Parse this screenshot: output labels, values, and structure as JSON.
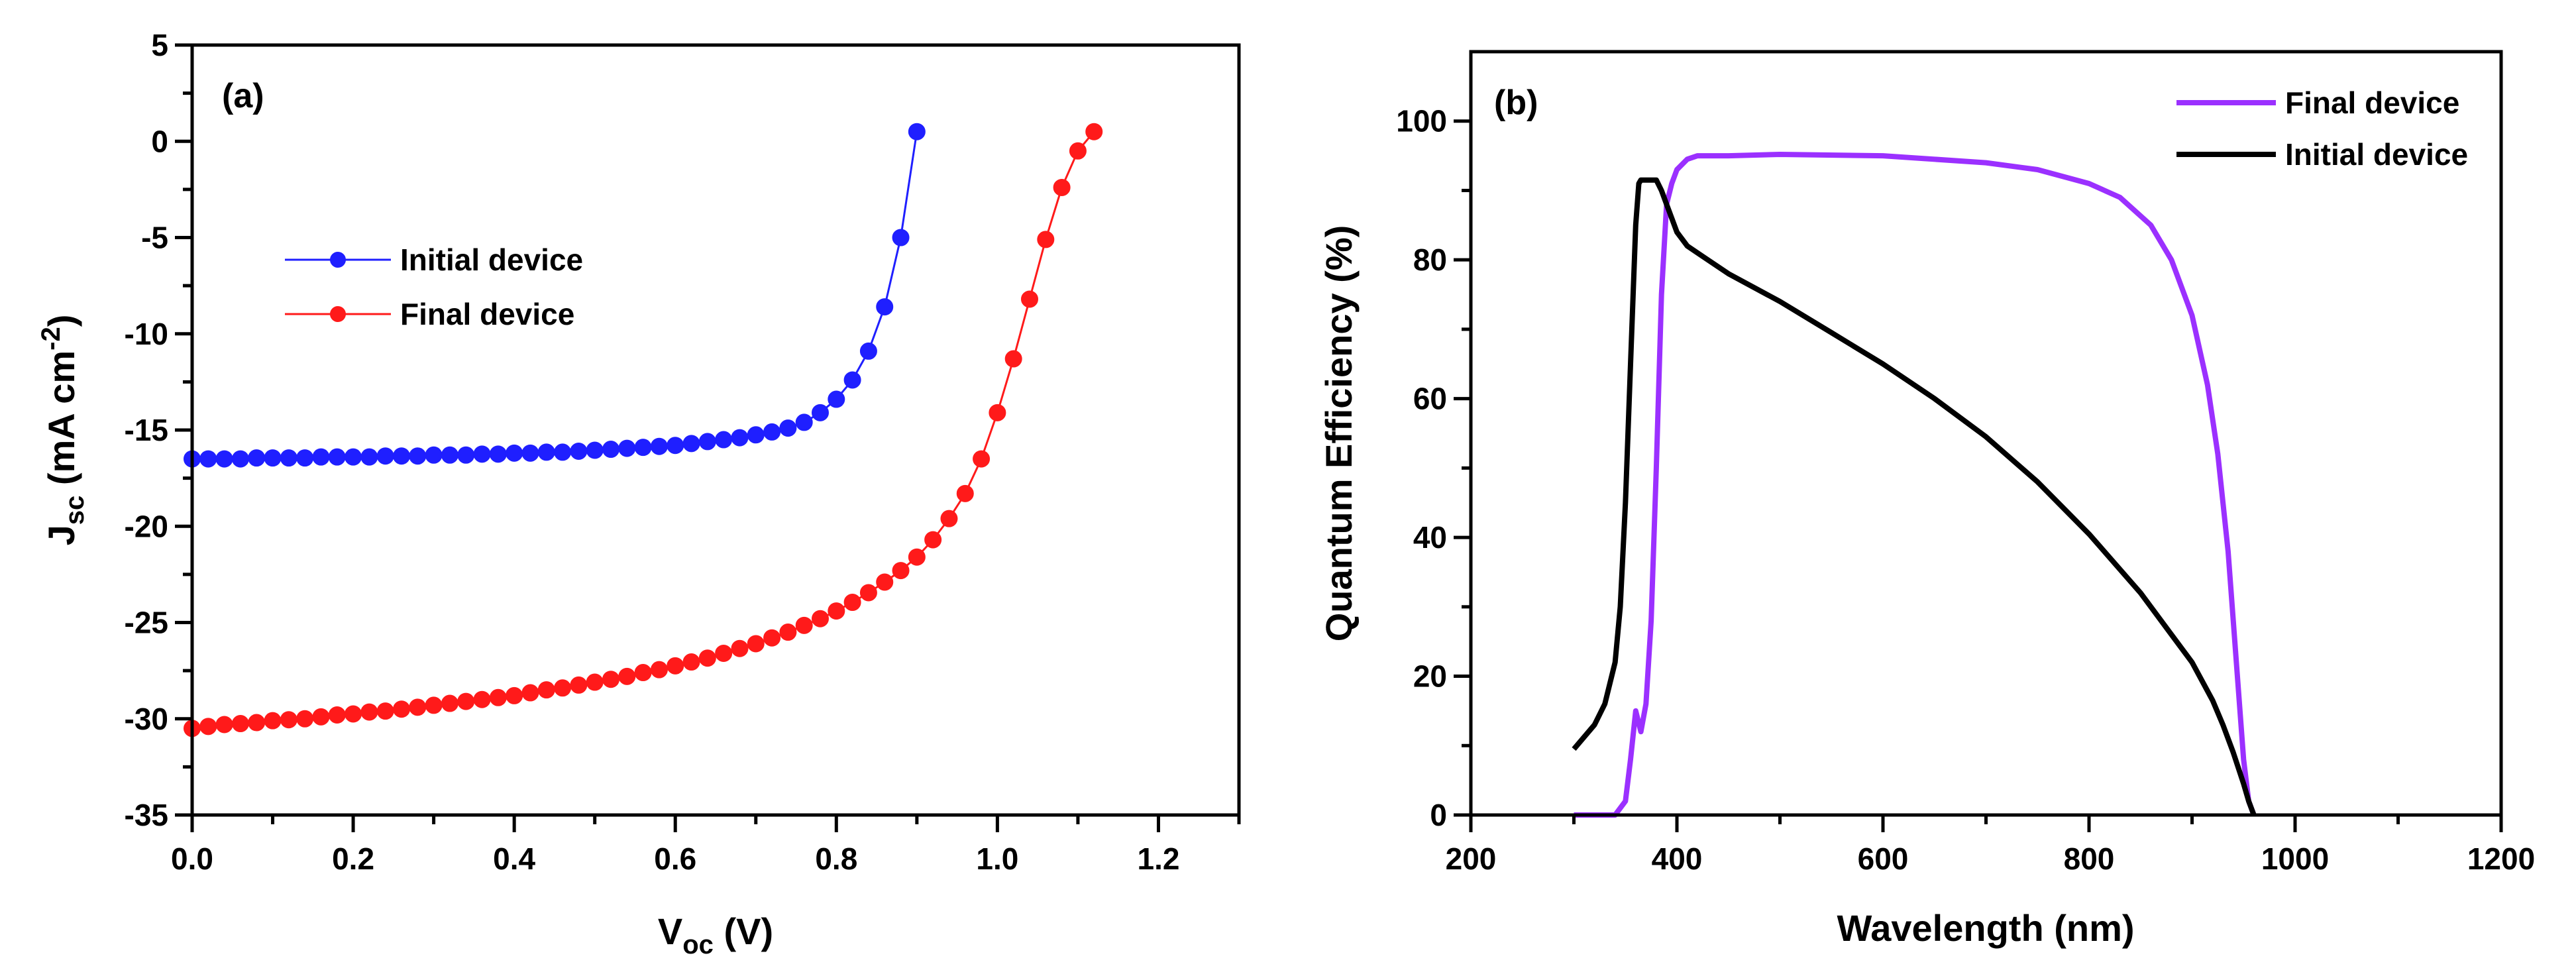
{
  "chart_data": [
    {
      "panel": "(a)",
      "type": "line",
      "markers": true,
      "xlabel": "V",
      "xlabel_sub": "oc",
      "xlabel_unit": " (V)",
      "ylabel": "J",
      "ylabel_sub": "sc",
      "ylabel_unit": " (mA cm",
      "ylabel_sup": "-2",
      "ylabel_close": ")",
      "xlim": [
        0.0,
        1.3
      ],
      "ylim": [
        -35,
        5
      ],
      "xticks": [
        0.0,
        0.2,
        0.4,
        0.6,
        0.8,
        1.0,
        1.2
      ],
      "xtick_labels": [
        "0.0",
        "0.2",
        "0.4",
        "0.6",
        "0.8",
        "1.0",
        "1.2"
      ],
      "yticks": [
        5,
        0,
        -5,
        -10,
        -15,
        -20,
        -25,
        -30,
        -35
      ],
      "ytick_labels": [
        "5",
        "0",
        "-5",
        "-10",
        "-15",
        "-20",
        "-25",
        "-30",
        "-35"
      ],
      "legend_position": "upper-left",
      "series": [
        {
          "name": "Initial device",
          "color": "#1f1fff",
          "x": [
            0.0,
            0.02,
            0.04,
            0.06,
            0.08,
            0.1,
            0.12,
            0.14,
            0.16,
            0.18,
            0.2,
            0.22,
            0.24,
            0.26,
            0.28,
            0.3,
            0.32,
            0.34,
            0.36,
            0.38,
            0.4,
            0.42,
            0.44,
            0.46,
            0.48,
            0.5,
            0.52,
            0.54,
            0.56,
            0.58,
            0.6,
            0.62,
            0.64,
            0.66,
            0.68,
            0.7,
            0.72,
            0.74,
            0.76,
            0.78,
            0.8,
            0.82,
            0.84,
            0.86,
            0.88,
            0.9
          ],
          "y": [
            -16.5,
            -16.5,
            -16.5,
            -16.5,
            -16.45,
            -16.45,
            -16.45,
            -16.45,
            -16.4,
            -16.4,
            -16.4,
            -16.4,
            -16.35,
            -16.35,
            -16.35,
            -16.3,
            -16.3,
            -16.3,
            -16.25,
            -16.25,
            -16.2,
            -16.2,
            -16.15,
            -16.15,
            -16.1,
            -16.05,
            -16.0,
            -15.95,
            -15.9,
            -15.85,
            -15.8,
            -15.7,
            -15.6,
            -15.5,
            -15.4,
            -15.25,
            -15.1,
            -14.9,
            -14.6,
            -14.1,
            -13.4,
            -12.4,
            -10.9,
            -8.6,
            -5.0,
            0.5
          ]
        },
        {
          "name": "Final device",
          "color": "#ff1a1a",
          "x": [
            0.0,
            0.02,
            0.04,
            0.06,
            0.08,
            0.1,
            0.12,
            0.14,
            0.16,
            0.18,
            0.2,
            0.22,
            0.24,
            0.26,
            0.28,
            0.3,
            0.32,
            0.34,
            0.36,
            0.38,
            0.4,
            0.42,
            0.44,
            0.46,
            0.48,
            0.5,
            0.52,
            0.54,
            0.56,
            0.58,
            0.6,
            0.62,
            0.64,
            0.66,
            0.68,
            0.7,
            0.72,
            0.74,
            0.76,
            0.78,
            0.8,
            0.82,
            0.84,
            0.86,
            0.88,
            0.9,
            0.92,
            0.94,
            0.96,
            0.98,
            1.0,
            1.02,
            1.04,
            1.06,
            1.08,
            1.1,
            1.12
          ],
          "y": [
            -30.5,
            -30.4,
            -30.3,
            -30.25,
            -30.2,
            -30.1,
            -30.05,
            -30.0,
            -29.9,
            -29.8,
            -29.75,
            -29.65,
            -29.6,
            -29.5,
            -29.4,
            -29.3,
            -29.2,
            -29.1,
            -29.0,
            -28.9,
            -28.8,
            -28.65,
            -28.5,
            -28.4,
            -28.25,
            -28.1,
            -27.95,
            -27.8,
            -27.6,
            -27.45,
            -27.25,
            -27.05,
            -26.85,
            -26.6,
            -26.35,
            -26.1,
            -25.8,
            -25.5,
            -25.15,
            -24.8,
            -24.4,
            -23.95,
            -23.45,
            -22.9,
            -22.3,
            -21.6,
            -20.7,
            -19.6,
            -18.3,
            -16.5,
            -14.1,
            -11.3,
            -8.2,
            -5.1,
            -2.4,
            -0.5,
            0.5
          ]
        }
      ]
    },
    {
      "panel": "(b)",
      "type": "line",
      "markers": false,
      "xlabel": "Wavelength (nm)",
      "ylabel": "Quantum Efficiency (%)",
      "xlim": [
        200,
        1200
      ],
      "ylim": [
        0,
        110
      ],
      "xticks": [
        200,
        400,
        600,
        800,
        1000,
        1200
      ],
      "xtick_labels": [
        "200",
        "400",
        "600",
        "800",
        "1000",
        "1200"
      ],
      "yticks": [
        0,
        20,
        40,
        60,
        80,
        100
      ],
      "ytick_labels": [
        "0",
        "20",
        "40",
        "60",
        "80",
        "100"
      ],
      "legend_position": "top-right",
      "series": [
        {
          "name": "Final device",
          "color": "#9b30ff",
          "x": [
            300,
            340,
            350,
            355,
            360,
            365,
            370,
            375,
            380,
            385,
            390,
            395,
            400,
            410,
            420,
            430,
            450,
            500,
            600,
            700,
            750,
            800,
            830,
            860,
            880,
            900,
            915,
            925,
            935,
            940,
            945,
            950,
            955,
            960
          ],
          "y": [
            0,
            0,
            2,
            8,
            15,
            12,
            16,
            28,
            50,
            75,
            88,
            91,
            93,
            94.5,
            95,
            95,
            95,
            95.2,
            95,
            94,
            93,
            91,
            89,
            85,
            80,
            72,
            62,
            52,
            38,
            28,
            18,
            8,
            2,
            0
          ]
        },
        {
          "name": "Initial device",
          "color": "#000000",
          "x": [
            300,
            320,
            330,
            340,
            345,
            350,
            355,
            360,
            363,
            365,
            370,
            375,
            380,
            385,
            390,
            395,
            400,
            410,
            420,
            430,
            450,
            500,
            550,
            600,
            650,
            700,
            750,
            800,
            850,
            880,
            900,
            920,
            930,
            940,
            950,
            955,
            960
          ],
          "y": [
            9.5,
            13,
            16,
            22,
            30,
            45,
            65,
            85,
            91,
            91.5,
            91.5,
            91.5,
            91.5,
            90,
            88,
            86,
            84,
            82,
            81,
            80,
            78,
            74,
            69.5,
            65,
            60,
            54.5,
            48,
            40.5,
            32,
            26,
            22,
            16.5,
            13,
            9,
            4.5,
            2,
            0
          ]
        }
      ]
    }
  ]
}
